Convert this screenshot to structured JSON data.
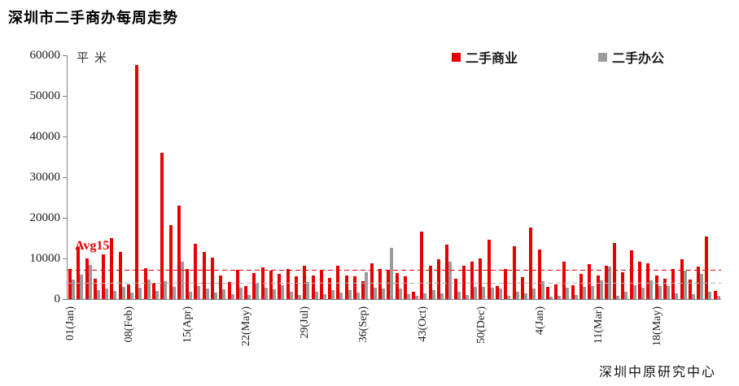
{
  "title": "深圳市二手商办每周走势",
  "y_axis_unit": "平米",
  "footer": "深圳中原研究中心",
  "legend": [
    {
      "label": "二手商业",
      "color": "#e60000"
    },
    {
      "label": "二手办公",
      "color": "#9b9b9b"
    }
  ],
  "avg_label": "Avg15",
  "chart_data": {
    "type": "bar",
    "title": "深圳市二手商办每周走势",
    "xlabel": "",
    "ylabel": "平米",
    "ylim": [
      0,
      60000
    ],
    "y_ticks": [
      0,
      10000,
      20000,
      30000,
      40000,
      50000,
      60000
    ],
    "grid": false,
    "legend_position": "top",
    "x_tick_labels": [
      {
        "index": 0,
        "label": "01(Jan)"
      },
      {
        "index": 7,
        "label": "08(Feb)"
      },
      {
        "index": 14,
        "label": "15(Apr)"
      },
      {
        "index": 21,
        "label": "22(May)"
      },
      {
        "index": 28,
        "label": "29(Jul)"
      },
      {
        "index": 35,
        "label": "36(Sep)"
      },
      {
        "index": 42,
        "label": "43(Oct)"
      },
      {
        "index": 49,
        "label": "50(Dec)"
      },
      {
        "index": 56,
        "label": "4(Jan)"
      },
      {
        "index": 63,
        "label": "11(Mar)"
      },
      {
        "index": 70,
        "label": "18(May)"
      }
    ],
    "series": [
      {
        "name": "二手商业",
        "color": "#e60000",
        "values": [
          7400,
          12800,
          10000,
          5100,
          11000,
          15000,
          11600,
          3600,
          57600,
          7700,
          4000,
          36000,
          18200,
          23000,
          7400,
          13600,
          11600,
          10300,
          5900,
          4300,
          7300,
          3300,
          6400,
          7900,
          7000,
          6300,
          7500,
          5600,
          8300,
          5900,
          7300,
          5300,
          8300,
          5900,
          5600,
          4500,
          8900,
          7400,
          7100,
          6400,
          5700,
          1900,
          16600,
          8300,
          9900,
          13400,
          5100,
          8300,
          9300,
          10100,
          14600,
          3300,
          7400,
          13100,
          5400,
          17600,
          12300,
          3100,
          3600,
          9300,
          3400,
          6300,
          8700,
          5900,
          8300,
          13900,
          6600,
          12000,
          9300,
          8800,
          5900,
          5100,
          7400,
          9900,
          4900,
          8000,
          15500,
          2000
        ]
      },
      {
        "name": "二手办公",
        "color": "#9b9b9b",
        "values": [
          4800,
          6000,
          8400,
          2300,
          2600,
          2000,
          3100,
          1600,
          2800,
          4800,
          2000,
          4500,
          3000,
          9300,
          1900,
          3300,
          2700,
          1700,
          2400,
          1200,
          2900,
          1000,
          3900,
          2900,
          2400,
          3500,
          1800,
          1100,
          4300,
          1900,
          1300,
          2300,
          1600,
          2300,
          1600,
          6700,
          2900,
          2600,
          12700,
          2600,
          1300,
          800,
          1400,
          2300,
          1400,
          9300,
          1900,
          1100,
          3100,
          3100,
          2900,
          2700,
          900,
          1900,
          1400,
          2600,
          4500,
          700,
          800,
          2900,
          1100,
          3100,
          3300,
          4600,
          8000,
          900,
          1900,
          3500,
          2900,
          4700,
          3300,
          3300,
          1500,
          7100,
          1300,
          6300,
          1900,
          900
        ]
      }
    ],
    "reference_lines": [
      {
        "label": "Avg15",
        "value": 7000,
        "style": "dashed",
        "color": "#e60000"
      },
      {
        "label": "",
        "value": 3800,
        "style": "dashed",
        "color": "#b3b3b3"
      }
    ]
  }
}
